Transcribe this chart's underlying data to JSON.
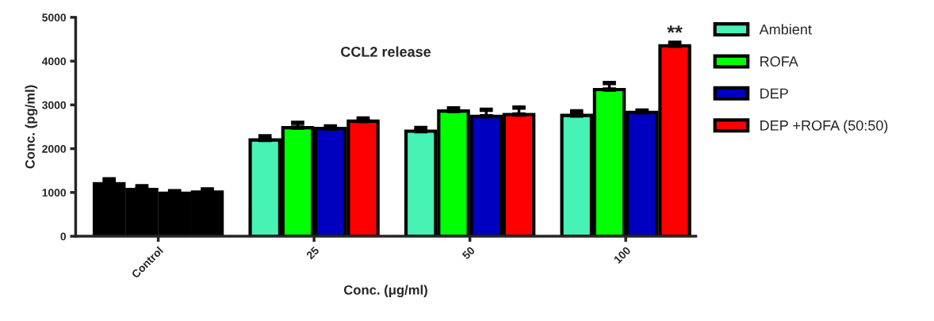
{
  "chart_data": {
    "type": "bar",
    "title": "CCL2 release",
    "xlabel": "Conc. (μg/ml)",
    "ylabel": "Conc. (pg/ml)",
    "categories": [
      "Control",
      "25",
      "50",
      "100"
    ],
    "series": [
      {
        "name": "Ambient",
        "color": "#46f2b4",
        "colors": [
          "#000000",
          "#46f2b4",
          "#46f2b4",
          "#46f2b4"
        ],
        "values": [
          1200,
          2200,
          2400,
          2760
        ],
        "errors": [
          100,
          80,
          70,
          90
        ]
      },
      {
        "name": "ROFA",
        "color": "#00ff00",
        "colors": [
          "#000000",
          "#00ff00",
          "#00ff00",
          "#00ff00"
        ],
        "values": [
          1070,
          2480,
          2860,
          3350
        ],
        "errors": [
          70,
          110,
          60,
          150
        ]
      },
      {
        "name": "DEP",
        "color": "#0000c0",
        "colors": [
          "#000000",
          "#0000c0",
          "#0000c0",
          "#0000c0"
        ],
        "values": [
          980,
          2460,
          2740,
          2830
        ],
        "errors": [
          50,
          50,
          150,
          40
        ]
      },
      {
        "name": "DEP +ROFA (50:50)",
        "color": "#ff0000",
        "colors": [
          "#000000",
          "#ff0000",
          "#ff0000",
          "#ff0000"
        ],
        "values": [
          1010,
          2630,
          2780,
          4350
        ],
        "errors": [
          60,
          60,
          160,
          70
        ]
      }
    ],
    "annotations": [
      "**"
    ],
    "ylim": [
      0,
      5000
    ],
    "yticks": [
      0,
      1000,
      2000,
      3000,
      4000,
      5000
    ],
    "grid": false,
    "legend": "right"
  }
}
